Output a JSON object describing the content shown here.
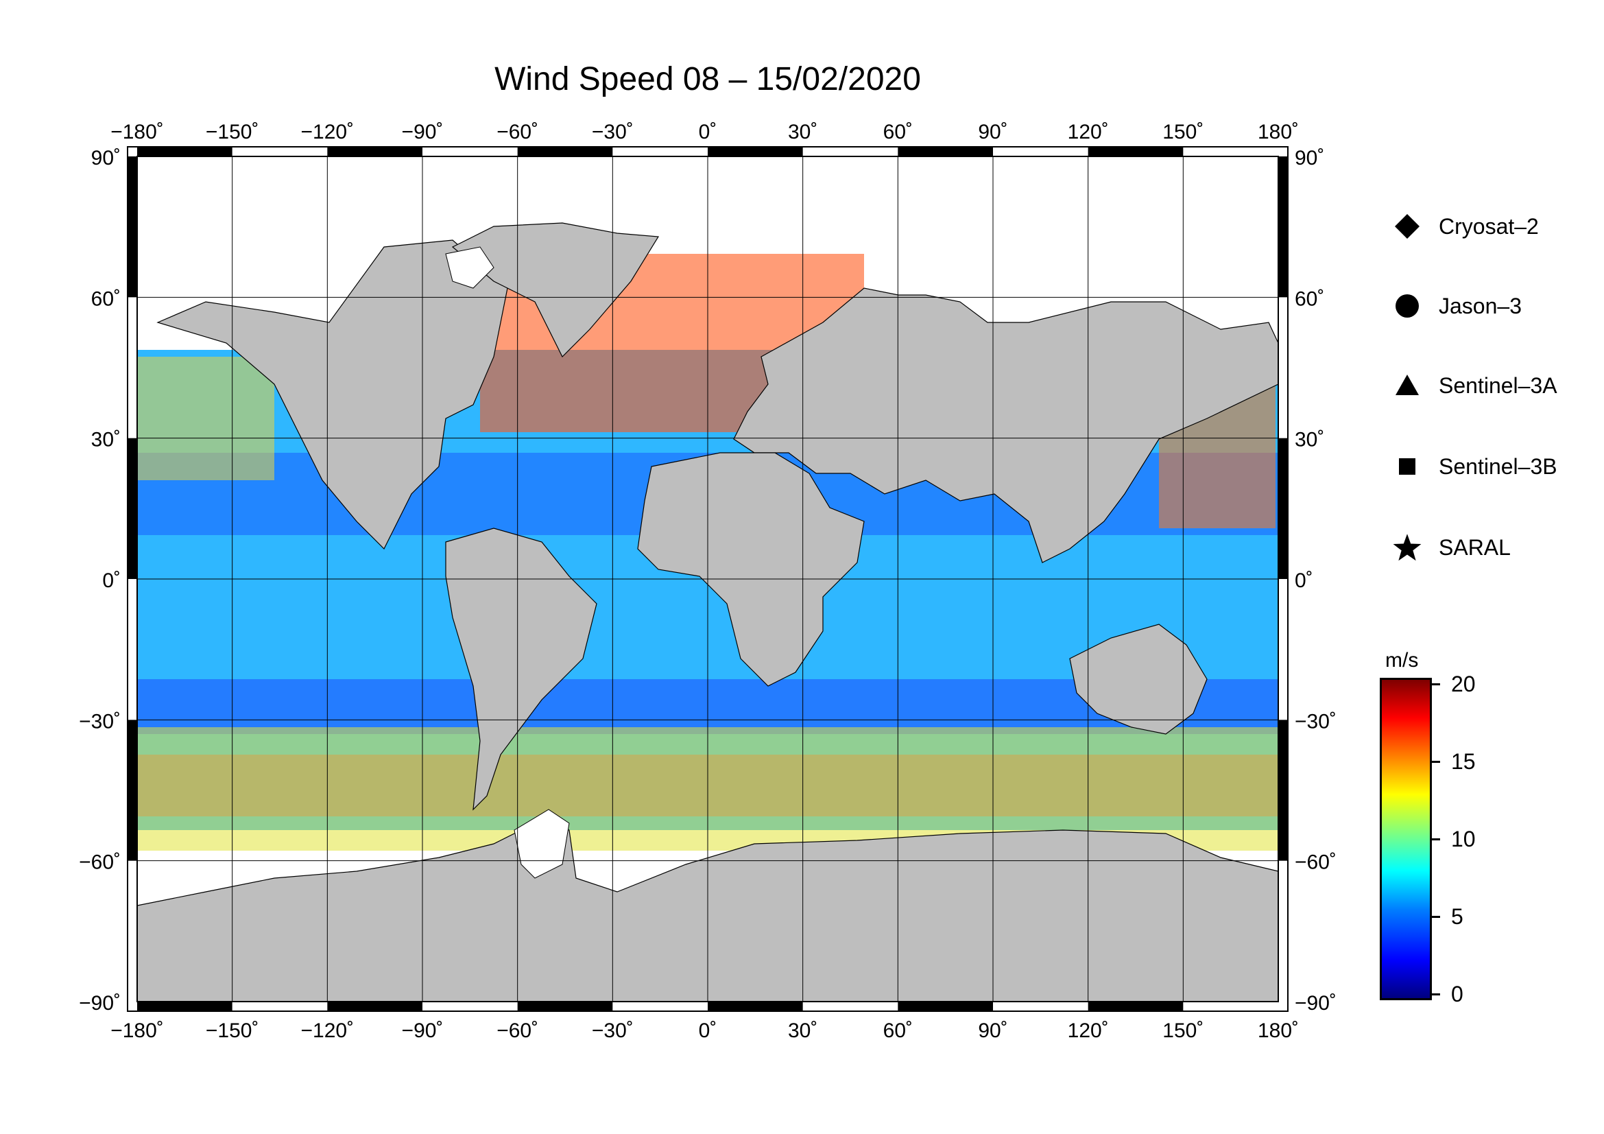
{
  "title": "Wind Speed 08 – 15/02/2020",
  "degree_symbol": "˚",
  "longitude_ticks": [
    -180,
    -150,
    -120,
    -90,
    -60,
    -30,
    0,
    30,
    60,
    90,
    120,
    150,
    180
  ],
  "latitude_ticks": [
    90,
    60,
    30,
    0,
    -30,
    -60,
    -90
  ],
  "map_extent": {
    "lon": [
      -180,
      180
    ],
    "lat": [
      -90,
      90
    ]
  },
  "colors": {
    "land": "#bebebe",
    "ice": "#ffffff",
    "ocean_missing": "#ffffff",
    "frame": "#000000",
    "grid": "#000000",
    "legend_symbol": "#000000"
  },
  "legend": {
    "items": [
      {
        "symbol": "diamond",
        "label": "Cryosat–2"
      },
      {
        "symbol": "circle",
        "label": "Jason–3"
      },
      {
        "symbol": "triangle",
        "label": "Sentinel–3A"
      },
      {
        "symbol": "square",
        "label": "Sentinel–3B"
      },
      {
        "symbol": "star",
        "label": "SARAL"
      }
    ]
  },
  "colorbar": {
    "unit": "m/s",
    "min": 0,
    "max": 20,
    "ticks": [
      20,
      15,
      10,
      5,
      0
    ],
    "colormap": "jet"
  }
}
